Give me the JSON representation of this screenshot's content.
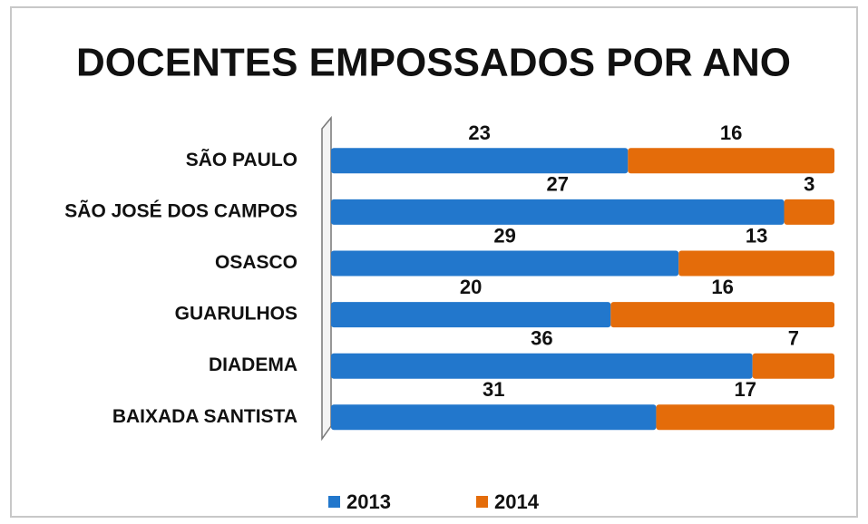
{
  "chart_data": {
    "type": "bar",
    "orientation": "horizontal",
    "stack": "percent",
    "title": "DOCENTES EMPOSSADOS POR ANO",
    "categories": [
      "SÃO PAULO",
      "SÃO JOSÉ DOS CAMPOS",
      "OSASCO",
      "GUARULHOS",
      "DIADEMA",
      "BAIXADA SANTISTA"
    ],
    "series": [
      {
        "name": "2013",
        "color": "#2277cc",
        "values": [
          23,
          27,
          29,
          20,
          36,
          31
        ]
      },
      {
        "name": "2014",
        "color": "#e46c0a",
        "values": [
          16,
          3,
          13,
          16,
          7,
          17
        ]
      }
    ],
    "legend": "bottom"
  }
}
